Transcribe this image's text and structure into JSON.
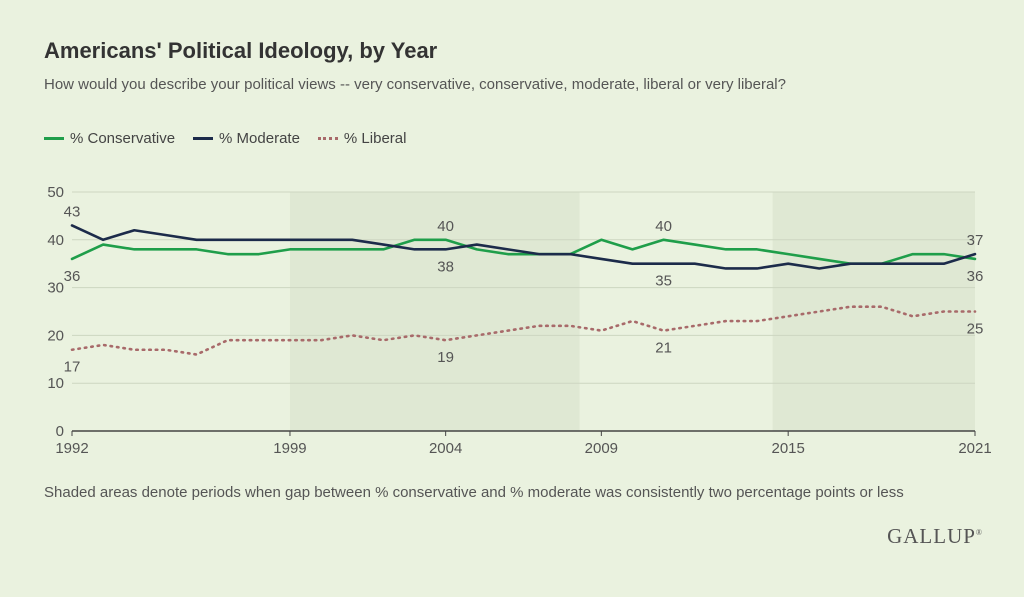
{
  "title": "Americans' Political Ideology, by Year",
  "subtitle": "How would you describe your political views -- very conservative, conservative, moderate, liberal or very liberal?",
  "footnote": "Shaded areas denote periods when gap between % conservative and % moderate was consistently two percentage points or less",
  "logo": "GALLUP",
  "chart_data": {
    "type": "line",
    "x": [
      1992,
      1993,
      1994,
      1995,
      1996,
      1997,
      1998,
      1999,
      2000,
      2001,
      2002,
      2003,
      2004,
      2005,
      2006,
      2007,
      2008,
      2009,
      2010,
      2011,
      2012,
      2013,
      2014,
      2015,
      2016,
      2017,
      2018,
      2019,
      2020,
      2021
    ],
    "xticks": [
      1992,
      1999,
      2004,
      2009,
      2015,
      2021
    ],
    "yticks": [
      0,
      10,
      20,
      30,
      40,
      50
    ],
    "ylim": [
      0,
      50
    ],
    "grid": true,
    "legend_position": "top-left",
    "shaded_periods": [
      [
        1999,
        2008.3
      ],
      [
        2014.5,
        2021.4
      ]
    ],
    "colors": {
      "shade": "#dfe8d3",
      "grid": "#cdd6c1",
      "axis": "#444444",
      "tick_label": "#555555"
    },
    "series": [
      {
        "name": "% Conservative",
        "color": "#1f9e4a",
        "style": "solid",
        "values": [
          36,
          39,
          38,
          38,
          38,
          37,
          37,
          38,
          38,
          38,
          38,
          40,
          40,
          38,
          37,
          37,
          37,
          40,
          38,
          40,
          39,
          38,
          38,
          37,
          36,
          35,
          35,
          37,
          37,
          36
        ]
      },
      {
        "name": "% Moderate",
        "color": "#1c2b4a",
        "style": "solid",
        "values": [
          43,
          40,
          42,
          41,
          40,
          40,
          40,
          40,
          40,
          40,
          39,
          38,
          38,
          39,
          38,
          37,
          37,
          36,
          35,
          35,
          35,
          34,
          34,
          35,
          34,
          35,
          35,
          35,
          35,
          37
        ]
      },
      {
        "name": "% Liberal",
        "color": "#a86a6a",
        "style": "dotted",
        "values": [
          17,
          18,
          17,
          17,
          16,
          19,
          19,
          19,
          19,
          20,
          19,
          20,
          19,
          20,
          21,
          22,
          22,
          21,
          23,
          21,
          22,
          23,
          23,
          24,
          25,
          26,
          26,
          24,
          25,
          25
        ]
      }
    ],
    "annotations": [
      {
        "x": 1992,
        "y": 43,
        "text": "43",
        "series": 1,
        "pos": "above"
      },
      {
        "x": 1992,
        "y": 36,
        "text": "36",
        "series": 0,
        "pos": "below"
      },
      {
        "x": 1992,
        "y": 17,
        "text": "17",
        "series": 2,
        "pos": "below"
      },
      {
        "x": 2004,
        "y": 40,
        "text": "40",
        "series": 0,
        "pos": "above"
      },
      {
        "x": 2004,
        "y": 38,
        "text": "38",
        "series": 1,
        "pos": "below"
      },
      {
        "x": 2004,
        "y": 19,
        "text": "19",
        "series": 2,
        "pos": "below"
      },
      {
        "x": 2011,
        "y": 40,
        "text": "40",
        "series": 0,
        "pos": "above"
      },
      {
        "x": 2011,
        "y": 35,
        "text": "35",
        "series": 1,
        "pos": "below"
      },
      {
        "x": 2011,
        "y": 21,
        "text": "21",
        "series": 2,
        "pos": "below"
      },
      {
        "x": 2021,
        "y": 37,
        "text": "37",
        "series": 1,
        "pos": "above"
      },
      {
        "x": 2021,
        "y": 36,
        "text": "36",
        "series": 0,
        "pos": "below"
      },
      {
        "x": 2021,
        "y": 25,
        "text": "25",
        "series": 2,
        "pos": "below"
      }
    ]
  }
}
